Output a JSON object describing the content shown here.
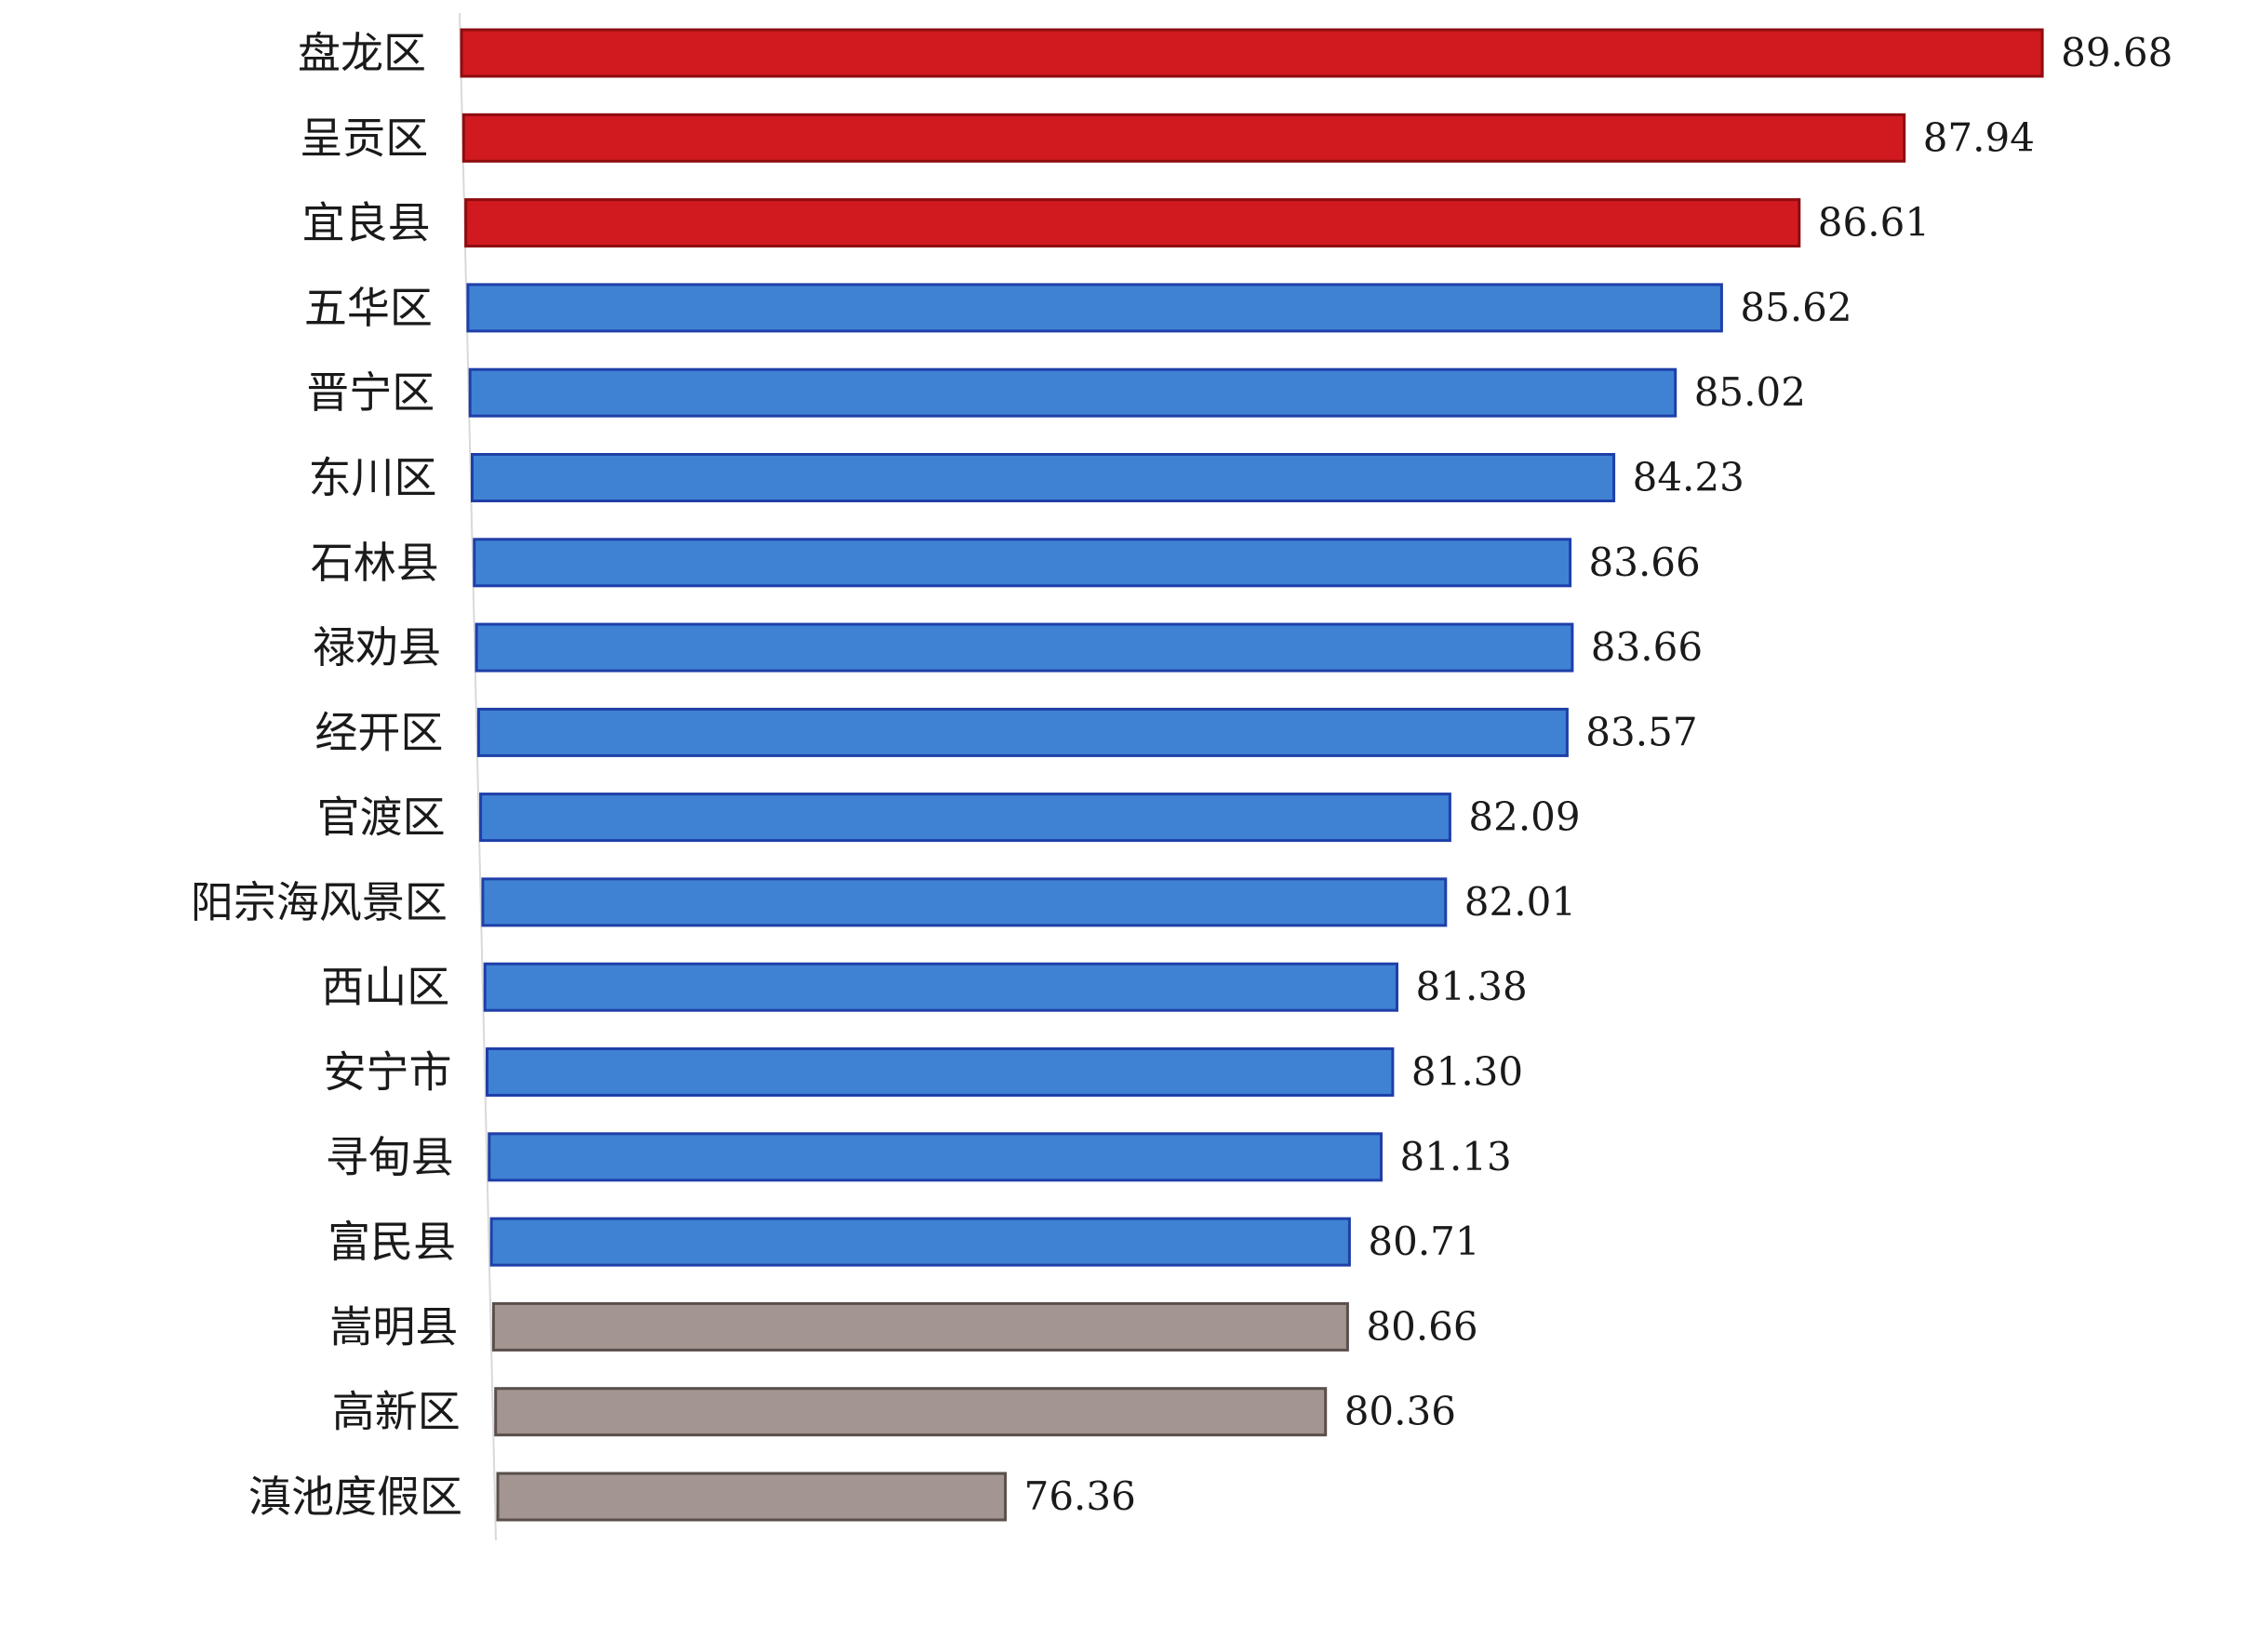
{
  "chart_data": {
    "type": "bar",
    "orientation": "horizontal",
    "title": "",
    "xlabel": "",
    "ylabel": "",
    "grid": false,
    "legend": "none",
    "categories": [
      "盘龙区",
      "呈贡区",
      "宜良县",
      "五华区",
      "晋宁区",
      "东川区",
      "石林县",
      "禄劝县",
      "经开区",
      "官渡区",
      "阳宗海风景区",
      "西山区",
      "安宁市",
      "寻甸县",
      "富民县",
      "嵩明县",
      "高新区",
      "滇池度假区"
    ],
    "values": [
      89.68,
      87.94,
      86.61,
      85.62,
      85.02,
      84.23,
      83.66,
      83.66,
      83.57,
      82.09,
      82.01,
      81.38,
      81.3,
      81.13,
      80.71,
      80.66,
      80.36,
      76.36
    ],
    "value_labels": [
      "89.68",
      "87.94",
      "86.61",
      "85.62",
      "85.02",
      "84.23",
      "83.66",
      "83.66",
      "83.57",
      "82.09",
      "82.01",
      "81.38",
      "81.30",
      "81.13",
      "80.71",
      "80.66",
      "80.36",
      "76.36"
    ],
    "groups": [
      "top",
      "top",
      "top",
      "mid",
      "mid",
      "mid",
      "mid",
      "mid",
      "mid",
      "mid",
      "mid",
      "mid",
      "mid",
      "mid",
      "mid",
      "bottom",
      "bottom",
      "bottom"
    ],
    "colors": {
      "top": "#d01a20",
      "top_edge": "#8e0c10",
      "mid": "#3f82d4",
      "mid_edge": "#1e3fa8",
      "bottom": "#a3958f",
      "bottom_edge": "#5a4f4b"
    }
  }
}
